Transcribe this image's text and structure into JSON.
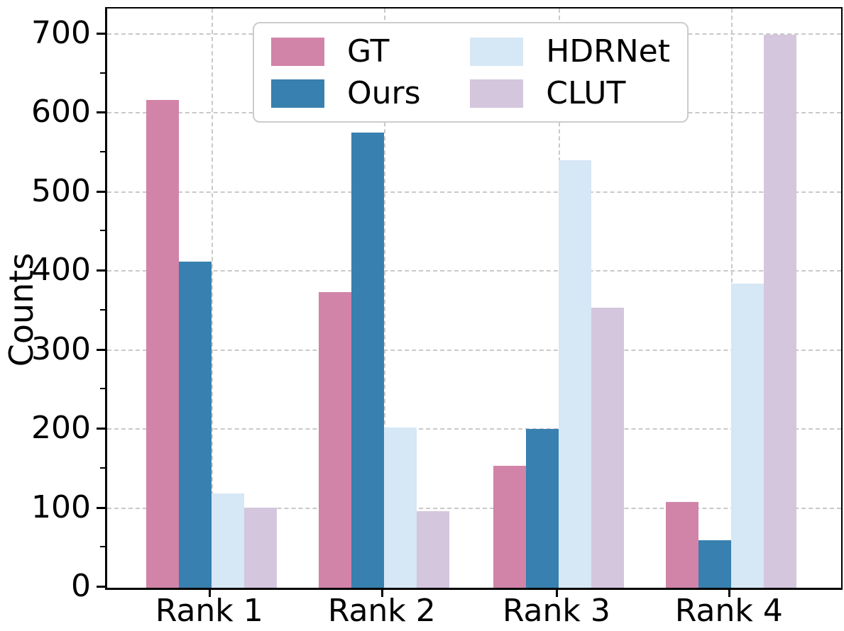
{
  "chart_data": {
    "type": "bar",
    "categories": [
      "Rank 1",
      "Rank 2",
      "Rank 3",
      "Rank 4"
    ],
    "series": [
      {
        "name": "GT",
        "color": "#d184a8",
        "values": [
          617,
          374,
          154,
          109
        ]
      },
      {
        "name": "Ours",
        "color": "#3780af",
        "values": [
          413,
          576,
          201,
          60
        ]
      },
      {
        "name": "HDRNet",
        "color": "#d6e7f5",
        "values": [
          119,
          203,
          541,
          385
        ]
      },
      {
        "name": "CLUT",
        "color": "#d4c6dd",
        "values": [
          101,
          97,
          354,
          700
        ]
      }
    ],
    "title": "",
    "xlabel": "",
    "ylabel": "Counts",
    "ylim": [
      0,
      733
    ],
    "yticks": [
      0,
      100,
      200,
      300,
      400,
      500,
      600,
      700
    ],
    "minor_ytick_step": 50,
    "grid": true,
    "grid_style": "dashed",
    "grid_color": "#c9c9c9",
    "legend_position": "upper center",
    "legend_columns": 2,
    "axis_color": "#000000",
    "text_color": "#000000"
  }
}
